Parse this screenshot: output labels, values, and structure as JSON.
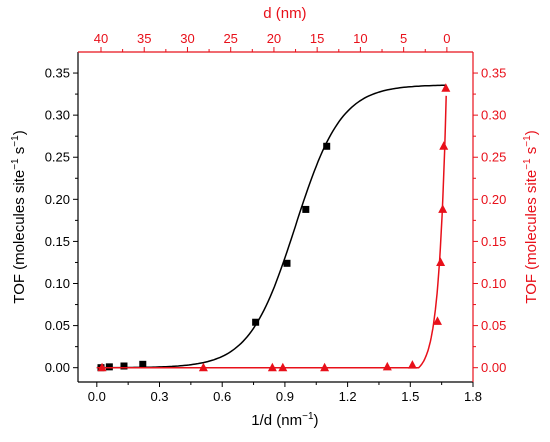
{
  "chart_data": {
    "type": "scatter",
    "colors": {
      "black": "#000000",
      "red": "#e8101a"
    },
    "axes": {
      "bottom": {
        "label": "1/d (nm",
        "label_sup": "−1",
        "label_tail": ")",
        "range": [
          -0.09,
          1.8
        ],
        "ticks": [
          0.0,
          0.3,
          0.6,
          0.9,
          1.2,
          1.5,
          1.8
        ],
        "tick_labels": [
          "0.0",
          "0.3",
          "0.6",
          "0.9",
          "1.2",
          "1.5",
          "1.8"
        ]
      },
      "top": {
        "label": "d (nm)",
        "ticks": [
          40,
          35,
          30,
          25,
          20,
          15,
          10,
          5,
          0
        ],
        "tick_labels": [
          "40",
          "35",
          "30",
          "25",
          "20",
          "15",
          "10",
          "5",
          "0"
        ]
      },
      "left": {
        "label_parts": [
          "TOF (molecules site",
          "−1",
          " s",
          "−1",
          ")"
        ],
        "range": [
          -0.017,
          0.375
        ],
        "ticks": [
          0.0,
          0.05,
          0.1,
          0.15,
          0.2,
          0.25,
          0.3,
          0.35
        ],
        "tick_labels": [
          "0.00",
          "0.05",
          "0.10",
          "0.15",
          "0.20",
          "0.25",
          "0.30",
          "0.35"
        ]
      },
      "right": {
        "label_parts": [
          "TOF (molecules site",
          "−1",
          " s",
          "−1",
          ")"
        ],
        "ticks": [
          0.0,
          0.05,
          0.1,
          0.15,
          0.2,
          0.25,
          0.3,
          0.35
        ],
        "tick_labels": [
          "0.00",
          "0.05",
          "0.10",
          "0.15",
          "0.20",
          "0.25",
          "0.30",
          "0.35"
        ]
      }
    },
    "series": [
      {
        "marker": "square",
        "color": "#000000",
        "points": [
          [
            0.02,
            0.0
          ],
          [
            0.06,
            0.001
          ],
          [
            0.13,
            0.002
          ],
          [
            0.22,
            0.004
          ],
          [
            0.76,
            0.054
          ],
          [
            0.91,
            0.124
          ],
          [
            1.0,
            0.188
          ],
          [
            1.1,
            0.263
          ]
        ],
        "fit": {
          "kind": "sigmoid",
          "bottom": 0.0,
          "top": 0.336,
          "x0": 0.95,
          "width": 0.11
        }
      },
      {
        "marker": "triangle",
        "color": "#e8101a",
        "points": [
          [
            0.025,
            0.0
          ],
          [
            0.51,
            0.0
          ],
          [
            0.84,
            0.0
          ],
          [
            0.89,
            0.0
          ],
          [
            1.09,
            0.0
          ],
          [
            1.39,
            0.001
          ],
          [
            1.51,
            0.003
          ],
          [
            1.63,
            0.055
          ],
          [
            1.645,
            0.125
          ],
          [
            1.655,
            0.188
          ],
          [
            1.66,
            0.263
          ],
          [
            1.67,
            0.332
          ]
        ],
        "fit": {
          "kind": "exp-rise",
          "x_start": 1.54,
          "x_end": 1.675,
          "y_end": 0.352
        }
      }
    ]
  }
}
